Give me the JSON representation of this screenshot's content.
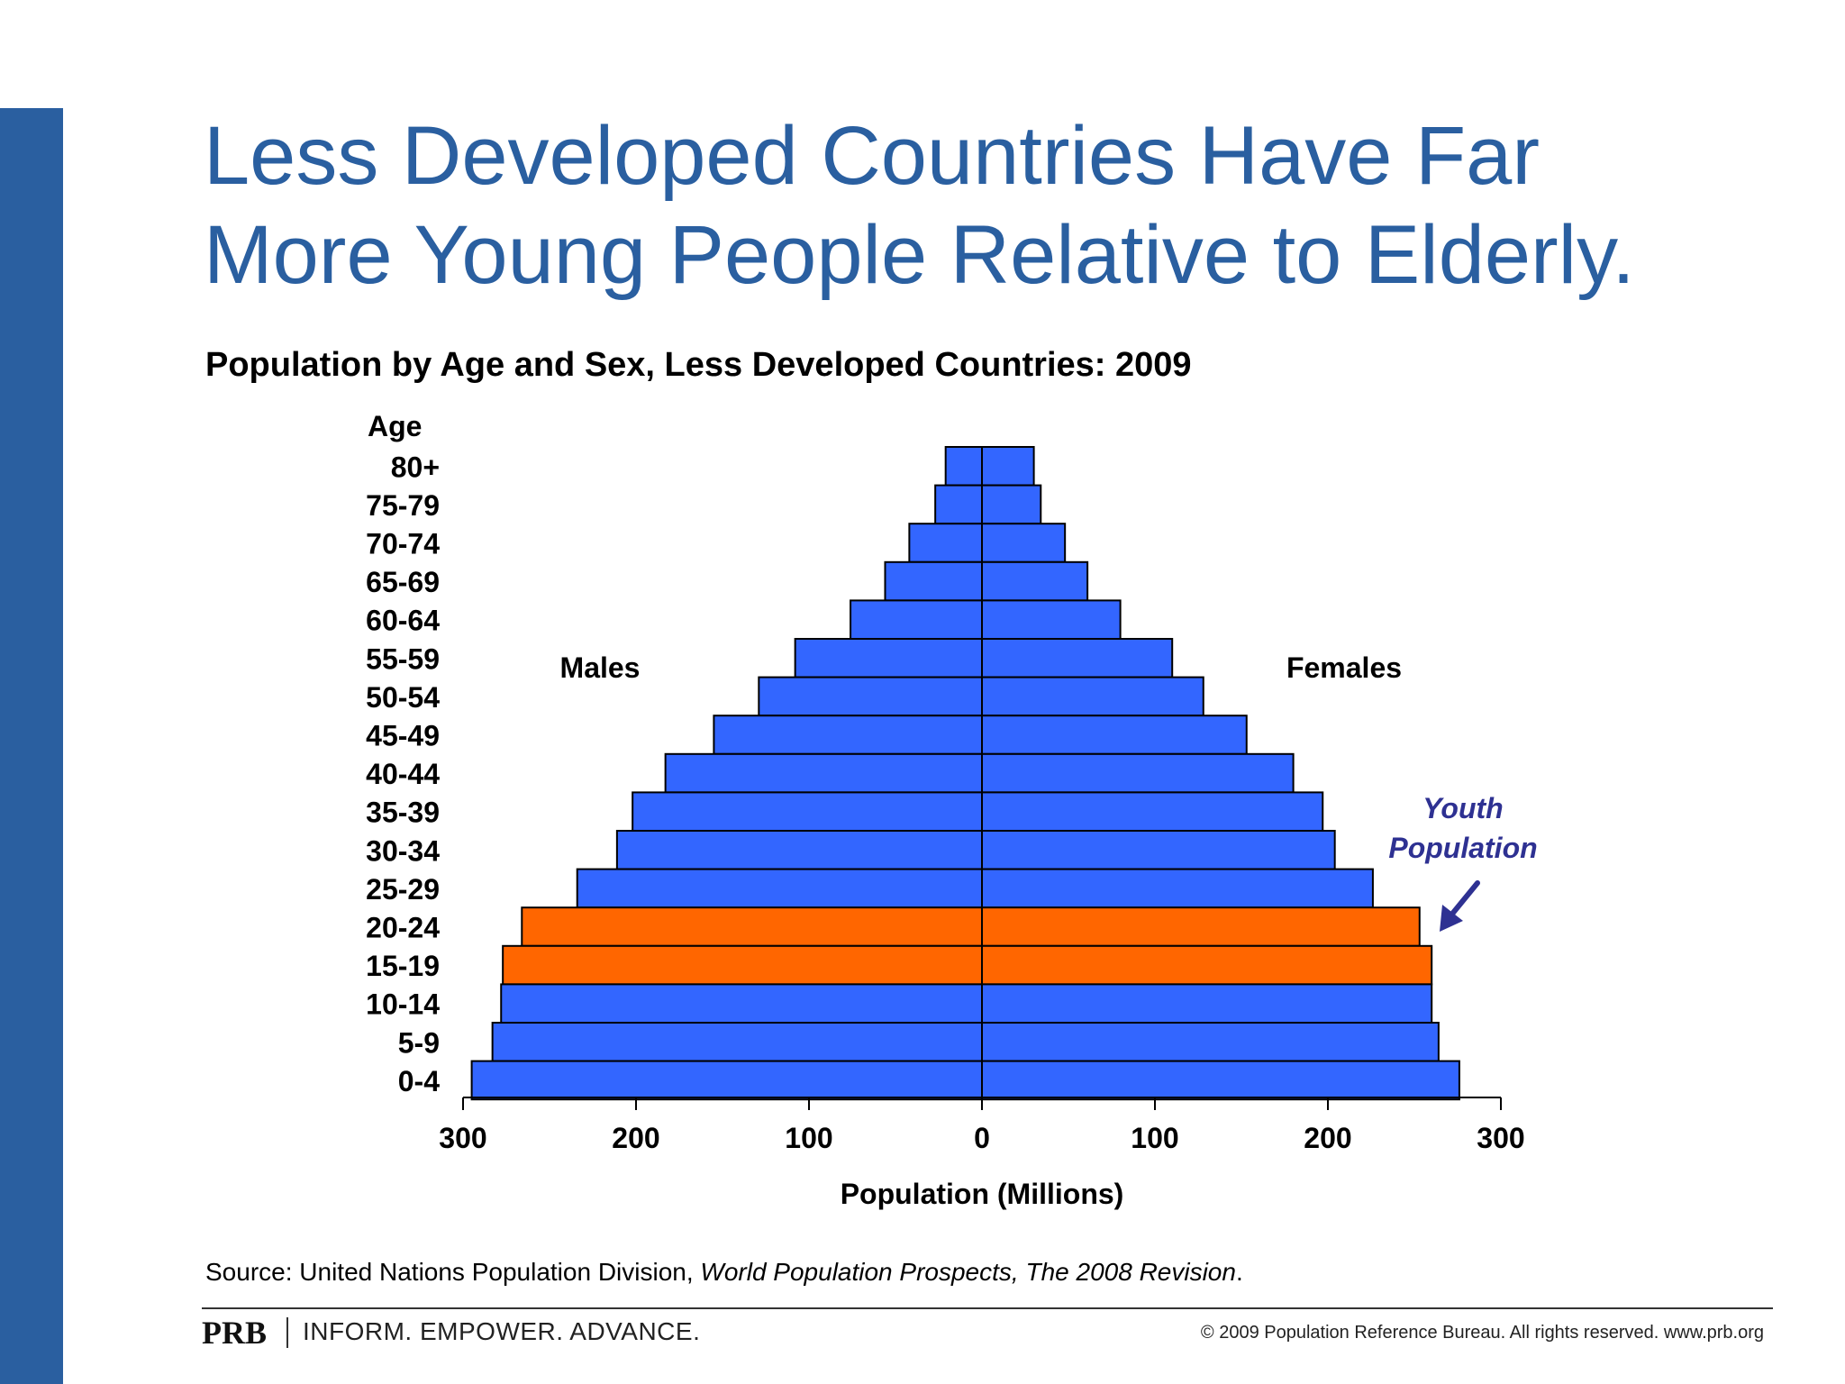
{
  "slide": {
    "title_line1": "Less Developed Countries Have Far",
    "title_line2": "More Young People Relative to Elderly.",
    "subtitle": "Population by Age and Sex, Less Developed Countries: 2009",
    "source_prefix": "Source: United Nations Population Division, ",
    "source_italic": "World Population Prospects, The 2008 Revision",
    "source_suffix": ".",
    "brand": "PRB",
    "tagline": "INFORM. EMPOWER. ADVANCE.",
    "copyright": "© 2009 Population Reference Bureau. All rights reserved. www.prb.org"
  },
  "colors": {
    "title": "#2a5fa0",
    "sidebar": "#2a5fa0",
    "bar": "#3366ff",
    "highlight": "#ff6600",
    "annotation": "#2e3192"
  },
  "chart_data": {
    "type": "bar",
    "orientation": "horizontal-population-pyramid",
    "title": "Population by Age and Sex, Less Developed Countries: 2009",
    "ylabel": "Age",
    "xlabel": "Population (Millions)",
    "xlim": [
      -300,
      300
    ],
    "x_ticks": [
      -300,
      -200,
      -100,
      0,
      100,
      200,
      300
    ],
    "x_tick_labels": [
      "300",
      "200",
      "100",
      "0",
      "100",
      "200",
      "300"
    ],
    "categories": [
      "80+",
      "75-79",
      "70-74",
      "65-69",
      "60-64",
      "55-59",
      "50-54",
      "45-49",
      "40-44",
      "35-39",
      "30-34",
      "25-29",
      "20-24",
      "15-19",
      "10-14",
      "5-9",
      "0-4"
    ],
    "series": [
      {
        "name": "Males",
        "values": [
          21,
          27,
          42,
          56,
          76,
          108,
          129,
          155,
          183,
          202,
          211,
          234,
          266,
          277,
          278,
          283,
          295
        ]
      },
      {
        "name": "Females",
        "values": [
          30,
          34,
          48,
          61,
          80,
          110,
          128,
          153,
          180,
          197,
          204,
          226,
          253,
          260,
          260,
          264,
          276
        ]
      }
    ],
    "highlight_categories": [
      "20-24",
      "15-19"
    ],
    "annotation": {
      "line1": "Youth",
      "line2": "Population"
    },
    "grid": false,
    "legend": "none"
  }
}
